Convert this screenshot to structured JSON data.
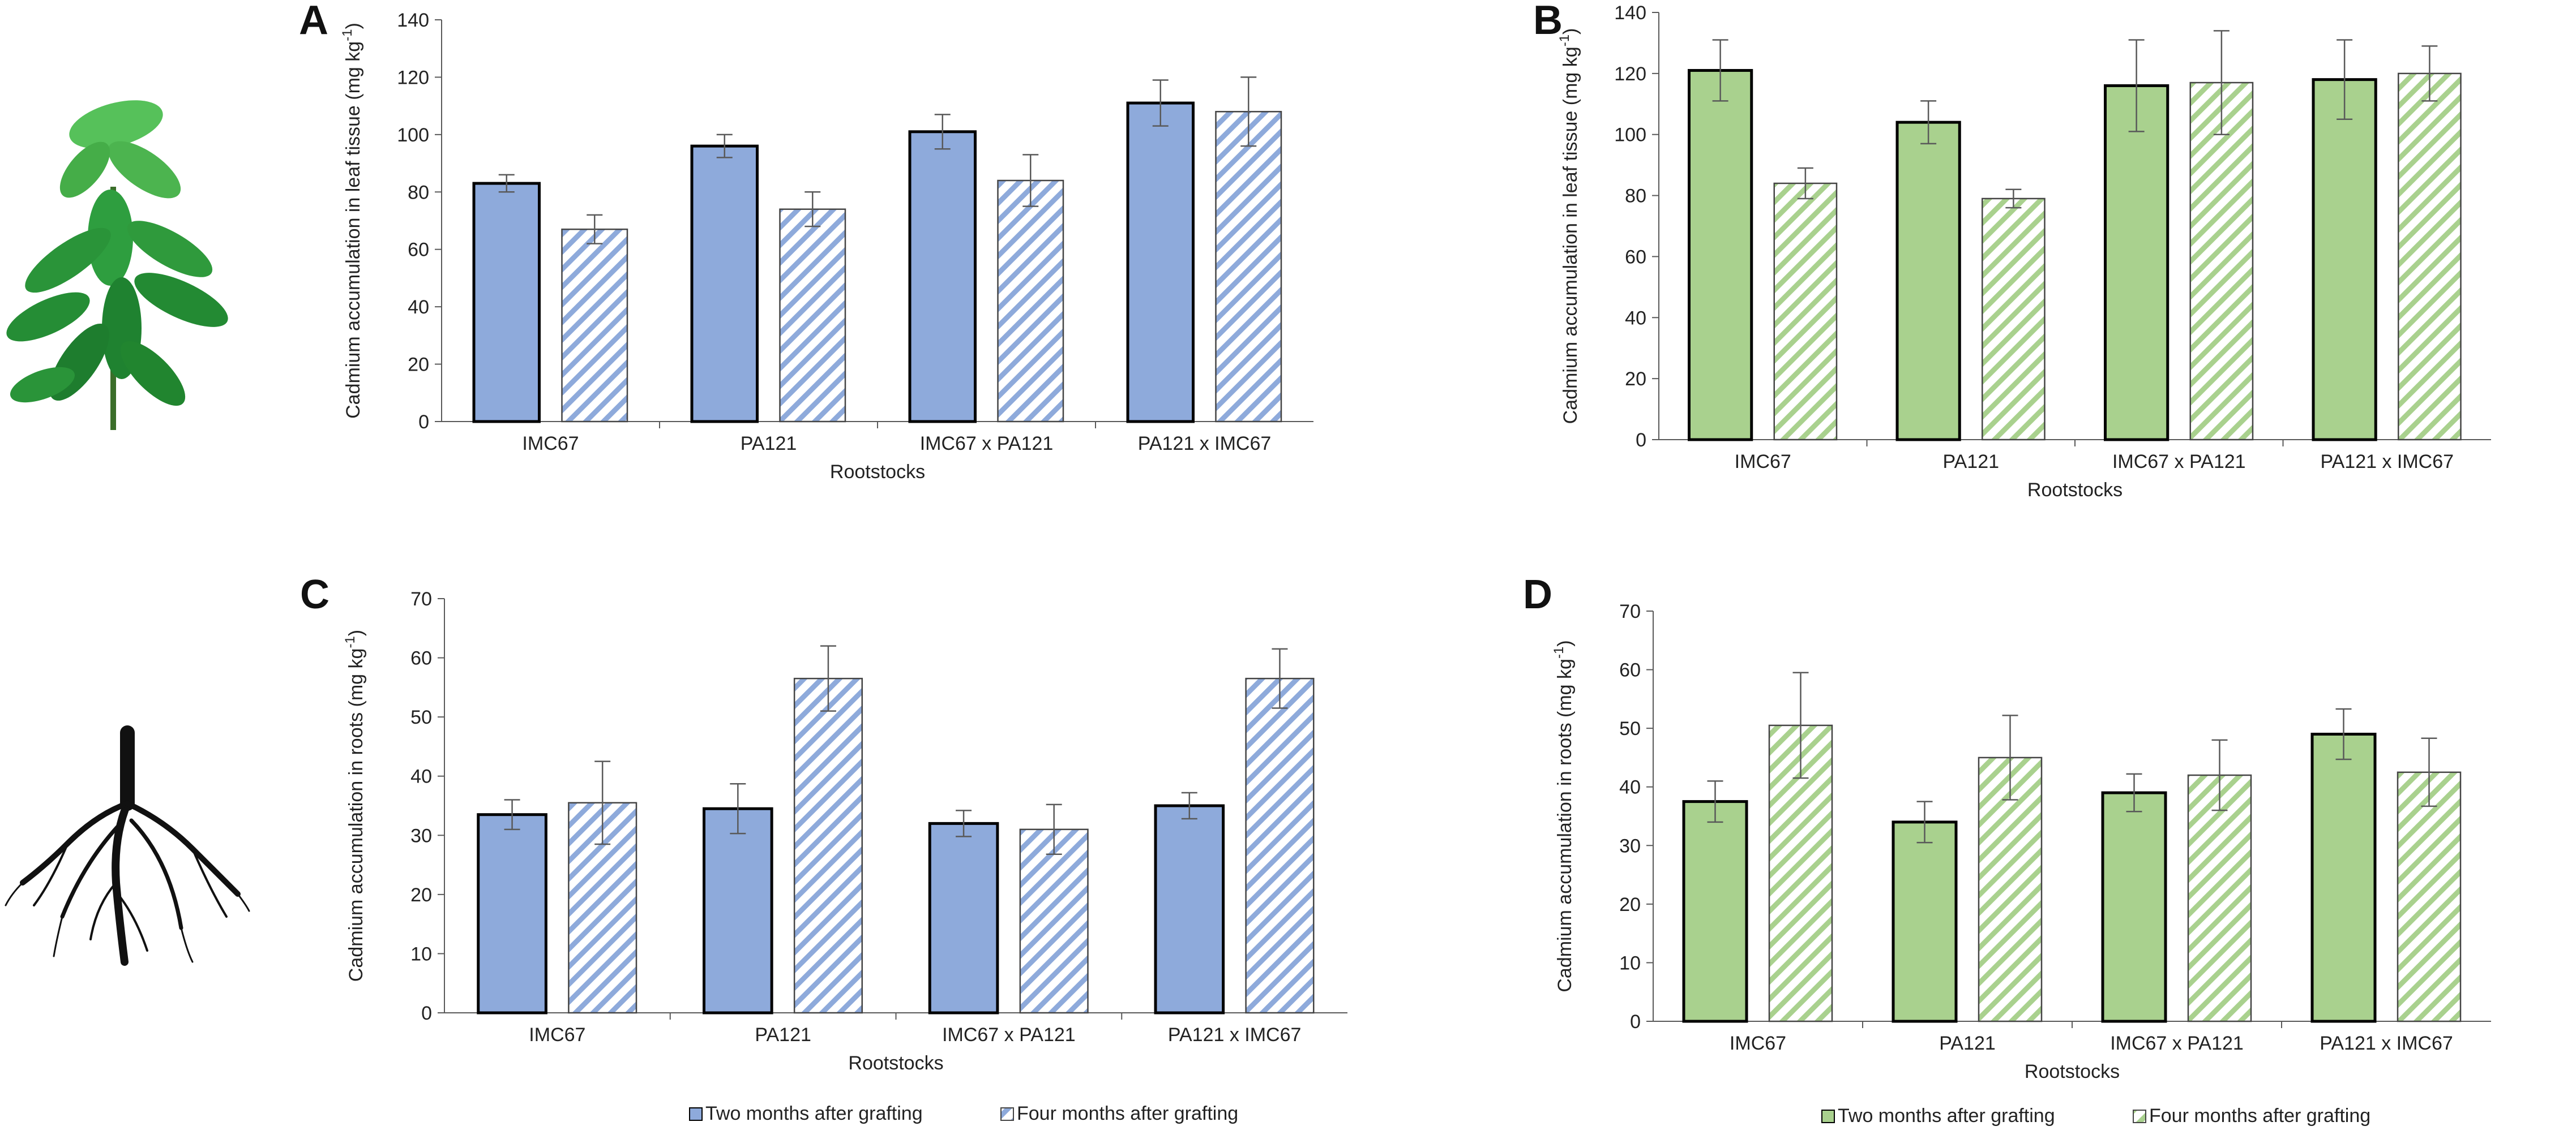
{
  "figure": {
    "legend": {
      "two_months": "Two months after grafting",
      "four_months": "Four months after grafting"
    },
    "colors": {
      "blue_fill": "#8eaadb",
      "blue_hatch": "#8eaadb",
      "green_fill": "#a9d18e",
      "green_hatch": "#a9d18e",
      "bar_edge_solid": "#000000",
      "bar_edge_hatch": "#444444",
      "axis": "#595959",
      "error_bar": "#595959",
      "leaf_green": "#2e9e3f",
      "root_black": "#111111"
    },
    "icons": {
      "plant": "cacao-seedling-icon",
      "roots": "root-system-icon"
    }
  },
  "chart_data": [
    {
      "panel": "A",
      "type": "bar",
      "title": "",
      "xlabel": "Rootstocks",
      "ylabel": "Cadmium accumulation in leaf tissue",
      "ylabel_unit": "(mg kg-1)",
      "ylim": [
        0,
        140
      ],
      "yticks": [
        0,
        20,
        40,
        60,
        80,
        100,
        120,
        140
      ],
      "categories": [
        "IMC67",
        "PA121",
        "IMC67 x PA121",
        "PA121 x IMC67"
      ],
      "color_scheme": "blue",
      "series": [
        {
          "name": "Two months after grafting",
          "style": "solid",
          "values": [
            83,
            96,
            101,
            111
          ],
          "errors": [
            3,
            4,
            6,
            8
          ]
        },
        {
          "name": "Four months after grafting",
          "style": "hatched",
          "values": [
            67,
            74,
            84,
            108
          ],
          "errors": [
            5,
            6,
            9,
            12
          ]
        }
      ]
    },
    {
      "panel": "B",
      "type": "bar",
      "title": "",
      "xlabel": "Rootstocks",
      "ylabel": "Cadmium accumulation in leaf tissue",
      "ylabel_unit": "(mg kg-1)",
      "ylim": [
        0,
        140
      ],
      "yticks": [
        0,
        20,
        40,
        60,
        80,
        100,
        120,
        140
      ],
      "categories": [
        "IMC67",
        "PA121",
        "IMC67 x PA121",
        "PA121 x IMC67"
      ],
      "color_scheme": "green",
      "series": [
        {
          "name": "Two months after grafting",
          "style": "solid",
          "values": [
            121,
            104,
            116,
            118
          ],
          "errors": [
            10,
            7,
            15,
            13
          ]
        },
        {
          "name": "Four months after grafting",
          "style": "hatched",
          "values": [
            84,
            79,
            117,
            120
          ],
          "errors": [
            5,
            3,
            17,
            9
          ]
        }
      ]
    },
    {
      "panel": "C",
      "type": "bar",
      "title": "",
      "xlabel": "Rootstocks",
      "ylabel": "Cadmium accumulation in roots",
      "ylabel_unit": "(mg kg-1)",
      "ylim": [
        0,
        70
      ],
      "yticks": [
        0,
        10,
        20,
        30,
        40,
        50,
        60,
        70
      ],
      "categories": [
        "IMC67",
        "PA121",
        "IMC67 x PA121",
        "PA121 x IMC67"
      ],
      "color_scheme": "blue",
      "series": [
        {
          "name": "Two months after grafting",
          "style": "solid",
          "values": [
            33.5,
            34.5,
            32,
            35
          ],
          "errors": [
            2.5,
            4.2,
            2.2,
            2.2
          ]
        },
        {
          "name": "Four months after grafting",
          "style": "hatched",
          "values": [
            35.5,
            56.5,
            31,
            56.5
          ],
          "errors": [
            7,
            5.5,
            4.2,
            5
          ]
        }
      ]
    },
    {
      "panel": "D",
      "type": "bar",
      "title": "",
      "xlabel": "Rootstocks",
      "ylabel": "Cadmium accumulation in roots",
      "ylabel_unit": "(mg kg-1)",
      "ylim": [
        0,
        70
      ],
      "yticks": [
        0,
        10,
        20,
        30,
        40,
        50,
        60,
        70
      ],
      "categories": [
        "IMC67",
        "PA121",
        "IMC67 x PA121",
        "PA121 x IMC67"
      ],
      "color_scheme": "green",
      "series": [
        {
          "name": "Two months after grafting",
          "style": "solid",
          "values": [
            37.5,
            34,
            39,
            49
          ],
          "errors": [
            3.5,
            3.5,
            3.2,
            4.3
          ]
        },
        {
          "name": "Four months after grafting",
          "style": "hatched",
          "values": [
            50.5,
            45,
            42,
            42.5
          ],
          "errors": [
            9,
            7.2,
            6,
            5.8
          ]
        }
      ]
    }
  ]
}
